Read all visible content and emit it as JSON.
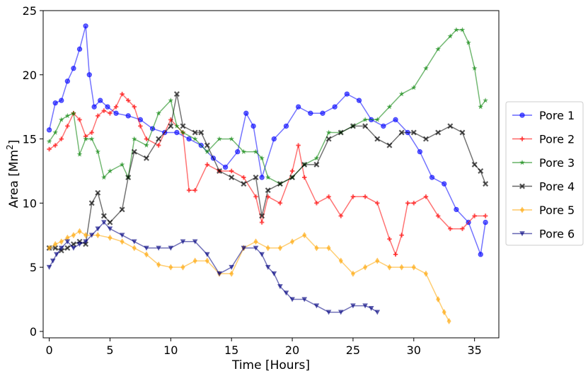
{
  "chart_data": {
    "type": "line",
    "title": "",
    "xlabel": "Time [Hours]",
    "ylabel_prefix": "Area [Mm",
    "ylabel_sup": "2",
    "ylabel_suffix": "]",
    "xlim": [
      -0.5,
      37
    ],
    "ylim": [
      -0.5,
      25
    ],
    "x_ticks": [
      0,
      5,
      10,
      15,
      20,
      25,
      30,
      35
    ],
    "y_ticks": [
      0,
      5,
      10,
      15,
      20,
      25
    ],
    "legend_position": "right-outside",
    "series": [
      {
        "name": "Pore 1",
        "color": "#0000ff",
        "marker": "circle",
        "x": [
          0,
          0.5,
          1,
          1.5,
          2,
          2.5,
          3,
          3.3,
          3.7,
          4.2,
          4.8,
          5.5,
          6.5,
          7.5,
          8.5,
          9.5,
          10.5,
          11.5,
          12.5,
          13.5,
          14.5,
          15.5,
          16.2,
          16.8,
          17.5,
          18.5,
          19.5,
          20.5,
          21.5,
          22.5,
          23.5,
          24.5,
          25.5,
          26.5,
          27.5,
          28.5,
          29.5,
          30.5,
          31.5,
          32.5,
          33.5,
          34.5,
          35.5,
          35.9
        ],
        "y": [
          15.7,
          17.8,
          18.0,
          19.5,
          20.5,
          22.0,
          23.8,
          20.0,
          17.5,
          18.0,
          17.5,
          17.0,
          16.8,
          16.5,
          15.8,
          15.5,
          15.5,
          15.0,
          14.5,
          13.5,
          12.8,
          14.0,
          17.0,
          16.0,
          12.0,
          15.0,
          16.0,
          17.5,
          17.0,
          17.0,
          17.5,
          18.5,
          18.0,
          16.5,
          16.0,
          16.5,
          15.5,
          14.0,
          12.0,
          11.5,
          9.5,
          8.5,
          6.0,
          8.5
        ]
      },
      {
        "name": "Pore 2",
        "color": "#ff0000",
        "marker": "plus",
        "x": [
          0,
          0.5,
          1,
          1.5,
          2,
          2.5,
          3,
          3.5,
          4,
          4.5,
          5,
          5.5,
          6,
          6.5,
          7,
          7.5,
          8,
          9,
          10,
          11,
          11.5,
          12,
          13,
          14,
          15,
          16,
          17,
          17.5,
          18,
          19,
          20,
          20.5,
          21,
          22,
          23,
          24,
          25,
          26,
          27,
          28,
          28.5,
          29,
          29.5,
          30,
          31,
          32,
          33,
          34,
          35,
          35.9
        ],
        "y": [
          14.2,
          14.5,
          15.0,
          16.0,
          17.0,
          16.5,
          15.2,
          15.5,
          16.8,
          17.2,
          17.0,
          17.5,
          18.5,
          18.0,
          17.5,
          16.0,
          15.0,
          14.5,
          16.5,
          15.5,
          11.0,
          11.0,
          13.0,
          12.5,
          12.5,
          12.0,
          10.5,
          8.5,
          10.5,
          10.0,
          12.5,
          14.5,
          12.0,
          10.0,
          10.5,
          9.0,
          10.5,
          10.5,
          10.0,
          7.2,
          6.0,
          7.5,
          10.0,
          10.0,
          10.5,
          9.0,
          8.0,
          8.0,
          9.0,
          9.0
        ]
      },
      {
        "name": "Pore 3",
        "color": "#008000",
        "marker": "star",
        "x": [
          0,
          0.5,
          1,
          1.5,
          2,
          2.5,
          3,
          3.5,
          4,
          4.5,
          5,
          6,
          6.5,
          7,
          8,
          9,
          10,
          10.5,
          11,
          12,
          13,
          14,
          15,
          16,
          17,
          17.5,
          18,
          19,
          20,
          21,
          22,
          23,
          24,
          25,
          26,
          27,
          28,
          29,
          30,
          31,
          32,
          33,
          33.5,
          34,
          34.5,
          35,
          35.5,
          35.9
        ],
        "y": [
          14.8,
          15.5,
          16.5,
          16.8,
          17.0,
          13.8,
          15.0,
          15.0,
          14.0,
          12.0,
          12.5,
          13.0,
          12.0,
          15.0,
          14.5,
          17.0,
          18.0,
          16.0,
          15.5,
          15.0,
          14.0,
          15.0,
          15.0,
          14.0,
          14.0,
          13.5,
          12.0,
          11.5,
          12.0,
          13.0,
          13.5,
          15.5,
          15.5,
          16.0,
          16.5,
          16.5,
          17.5,
          18.5,
          19.0,
          20.5,
          22.0,
          23.0,
          23.5,
          23.5,
          22.5,
          20.5,
          17.5,
          18.0
        ]
      },
      {
        "name": "Pore 4",
        "color": "#000000",
        "marker": "x",
        "x": [
          0,
          0.5,
          1,
          1.5,
          2,
          2.5,
          3,
          3.5,
          4,
          4.5,
          5,
          6,
          6.5,
          7,
          8,
          9,
          10,
          10.5,
          11,
          12,
          12.5,
          13,
          14,
          15,
          16,
          17,
          17.5,
          18,
          19,
          20,
          21,
          22,
          23,
          24,
          25,
          26,
          27,
          28,
          29,
          30,
          31,
          32,
          33,
          34,
          35,
          35.5,
          35.9
        ],
        "y": [
          6.5,
          6.5,
          6.3,
          6.5,
          6.8,
          7.0,
          6.8,
          10.0,
          10.8,
          9.0,
          8.5,
          9.5,
          12.0,
          14.0,
          13.5,
          15.0,
          16.0,
          18.5,
          16.0,
          15.5,
          15.5,
          14.5,
          12.5,
          12.0,
          11.5,
          12.0,
          9.0,
          11.0,
          11.5,
          12.0,
          13.0,
          13.0,
          15.0,
          15.5,
          16.0,
          16.0,
          15.0,
          14.5,
          15.5,
          15.5,
          15.0,
          15.5,
          16.0,
          15.5,
          13.0,
          12.5,
          11.5
        ]
      },
      {
        "name": "Pore 5",
        "color": "#ffa500",
        "marker": "diamond",
        "x": [
          0,
          0.5,
          1,
          1.5,
          2,
          2.5,
          3,
          4,
          5,
          6,
          7,
          8,
          9,
          10,
          11,
          12,
          13,
          14,
          15,
          16,
          17,
          18,
          19,
          20,
          21,
          22,
          23,
          24,
          25,
          26,
          27,
          28,
          29,
          30,
          31,
          32,
          32.5,
          32.9
        ],
        "y": [
          6.5,
          6.8,
          7.0,
          7.3,
          7.5,
          7.8,
          7.5,
          7.5,
          7.3,
          7.0,
          6.5,
          6.0,
          5.2,
          5.0,
          5.0,
          5.5,
          5.5,
          4.5,
          4.5,
          6.5,
          7.0,
          6.5,
          6.5,
          7.0,
          7.5,
          6.5,
          6.5,
          5.5,
          4.5,
          5.0,
          5.5,
          5.0,
          5.0,
          5.0,
          4.5,
          2.5,
          1.5,
          0.8
        ]
      },
      {
        "name": "Pore 6",
        "color": "#000080",
        "marker": "triangle-down",
        "x": [
          0,
          0.3,
          0.6,
          1,
          1.5,
          2,
          2.5,
          3,
          3.5,
          4,
          4.5,
          5,
          6,
          7,
          8,
          9,
          10,
          11,
          12,
          13,
          14,
          15,
          16,
          17,
          17.5,
          18,
          18.5,
          19,
          19.5,
          20,
          21,
          22,
          23,
          24,
          25,
          26,
          26.5,
          27
        ],
        "y": [
          5.0,
          5.5,
          6.0,
          6.5,
          7.0,
          6.5,
          6.8,
          7.0,
          7.5,
          8.0,
          8.5,
          8.0,
          7.5,
          7.0,
          6.5,
          6.5,
          6.5,
          7.0,
          7.0,
          6.0,
          4.5,
          5.0,
          6.5,
          6.5,
          6.0,
          5.0,
          4.5,
          3.5,
          3.0,
          2.5,
          2.5,
          2.0,
          1.5,
          1.5,
          2.0,
          2.0,
          1.8,
          1.5
        ]
      }
    ]
  }
}
